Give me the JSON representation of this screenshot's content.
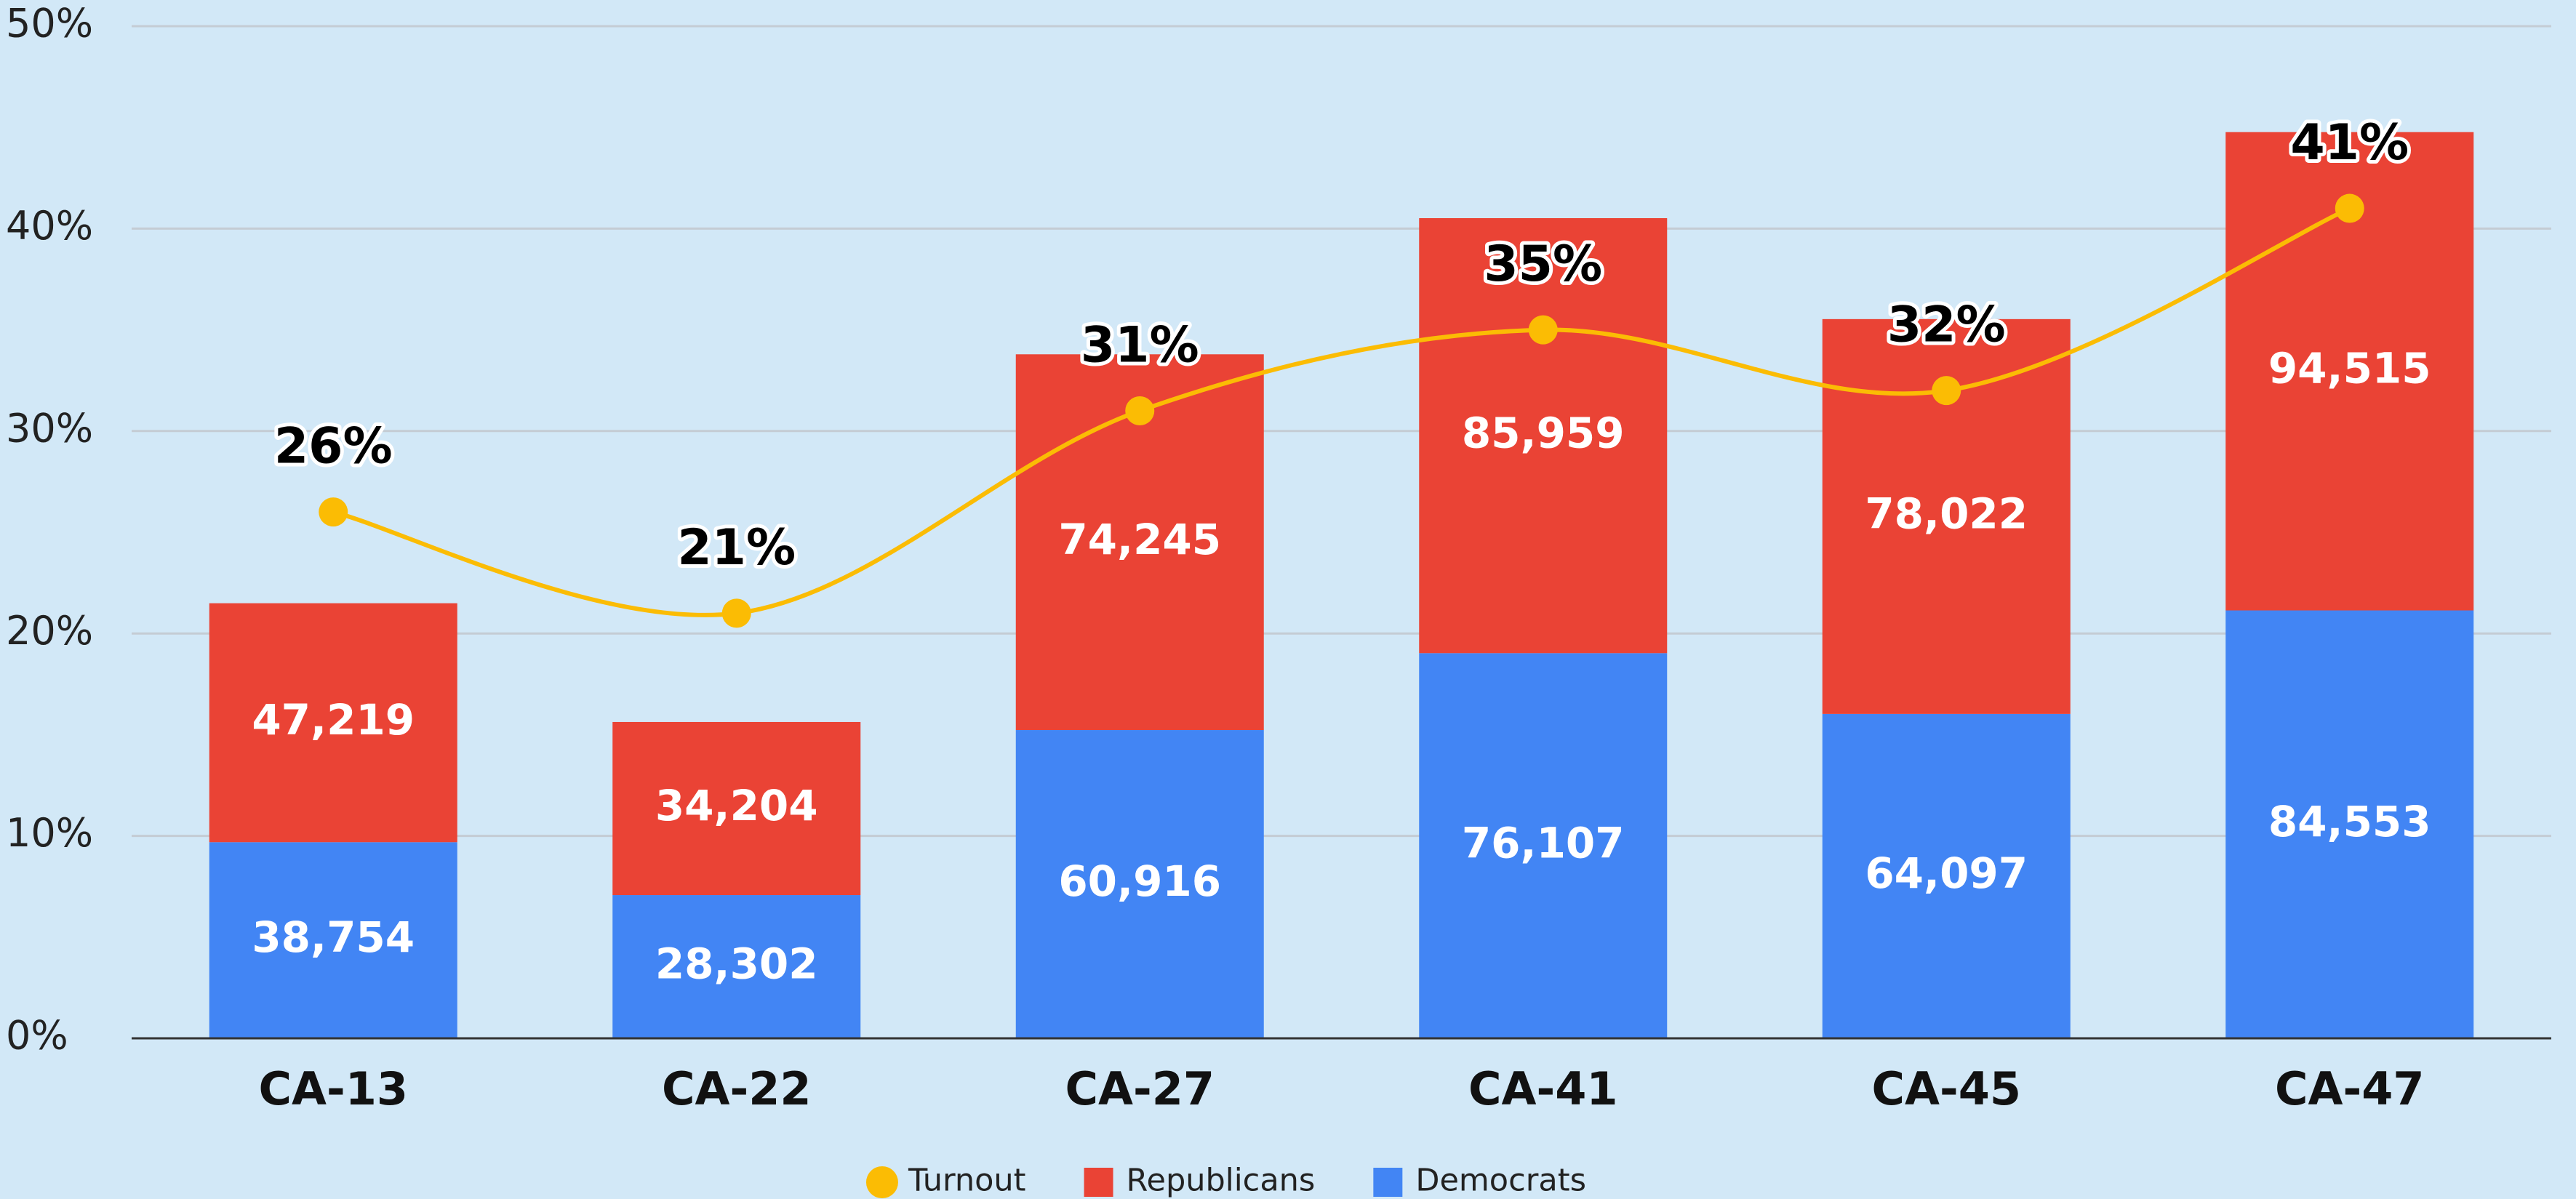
{
  "chart_data": {
    "type": "bar",
    "stacked": true,
    "categories": [
      "CA-13",
      "CA-22",
      "CA-27",
      "CA-41",
      "CA-45",
      "CA-47"
    ],
    "series": [
      {
        "name": "Turnout",
        "type": "line",
        "color": "#fbbc04",
        "values": [
          26,
          21,
          31,
          35,
          32,
          41
        ],
        "value_labels": [
          "26%",
          "21%",
          "31%",
          "35%",
          "32%",
          "41%"
        ]
      },
      {
        "name": "Republicans",
        "type": "bar",
        "axis": "y2",
        "color": "#ea4335",
        "values": [
          47219,
          34204,
          74245,
          85959,
          78022,
          94515
        ],
        "value_labels": [
          "47,219",
          "34,204",
          "74,245",
          "85,959",
          "78,022",
          "94,515"
        ]
      },
      {
        "name": "Democrats",
        "type": "bar",
        "axis": "y2",
        "color": "#4285f4",
        "values": [
          38754,
          28302,
          60916,
          76107,
          64097,
          84553
        ],
        "value_labels": [
          "38,754",
          "28,302",
          "60,916",
          "76,107",
          "64,097",
          "84,553"
        ]
      }
    ],
    "ylim": [
      0,
      50
    ],
    "yticks": [
      {
        "value": 0,
        "label": "0%"
      },
      {
        "value": 10,
        "label": "10%"
      },
      {
        "value": 20,
        "label": "20%"
      },
      {
        "value": 30,
        "label": "30%"
      },
      {
        "value": 40,
        "label": "40%"
      },
      {
        "value": 50,
        "label": "50%"
      }
    ],
    "y2lim": [
      0,
      200000
    ],
    "grid": true,
    "legend": "bottom"
  }
}
